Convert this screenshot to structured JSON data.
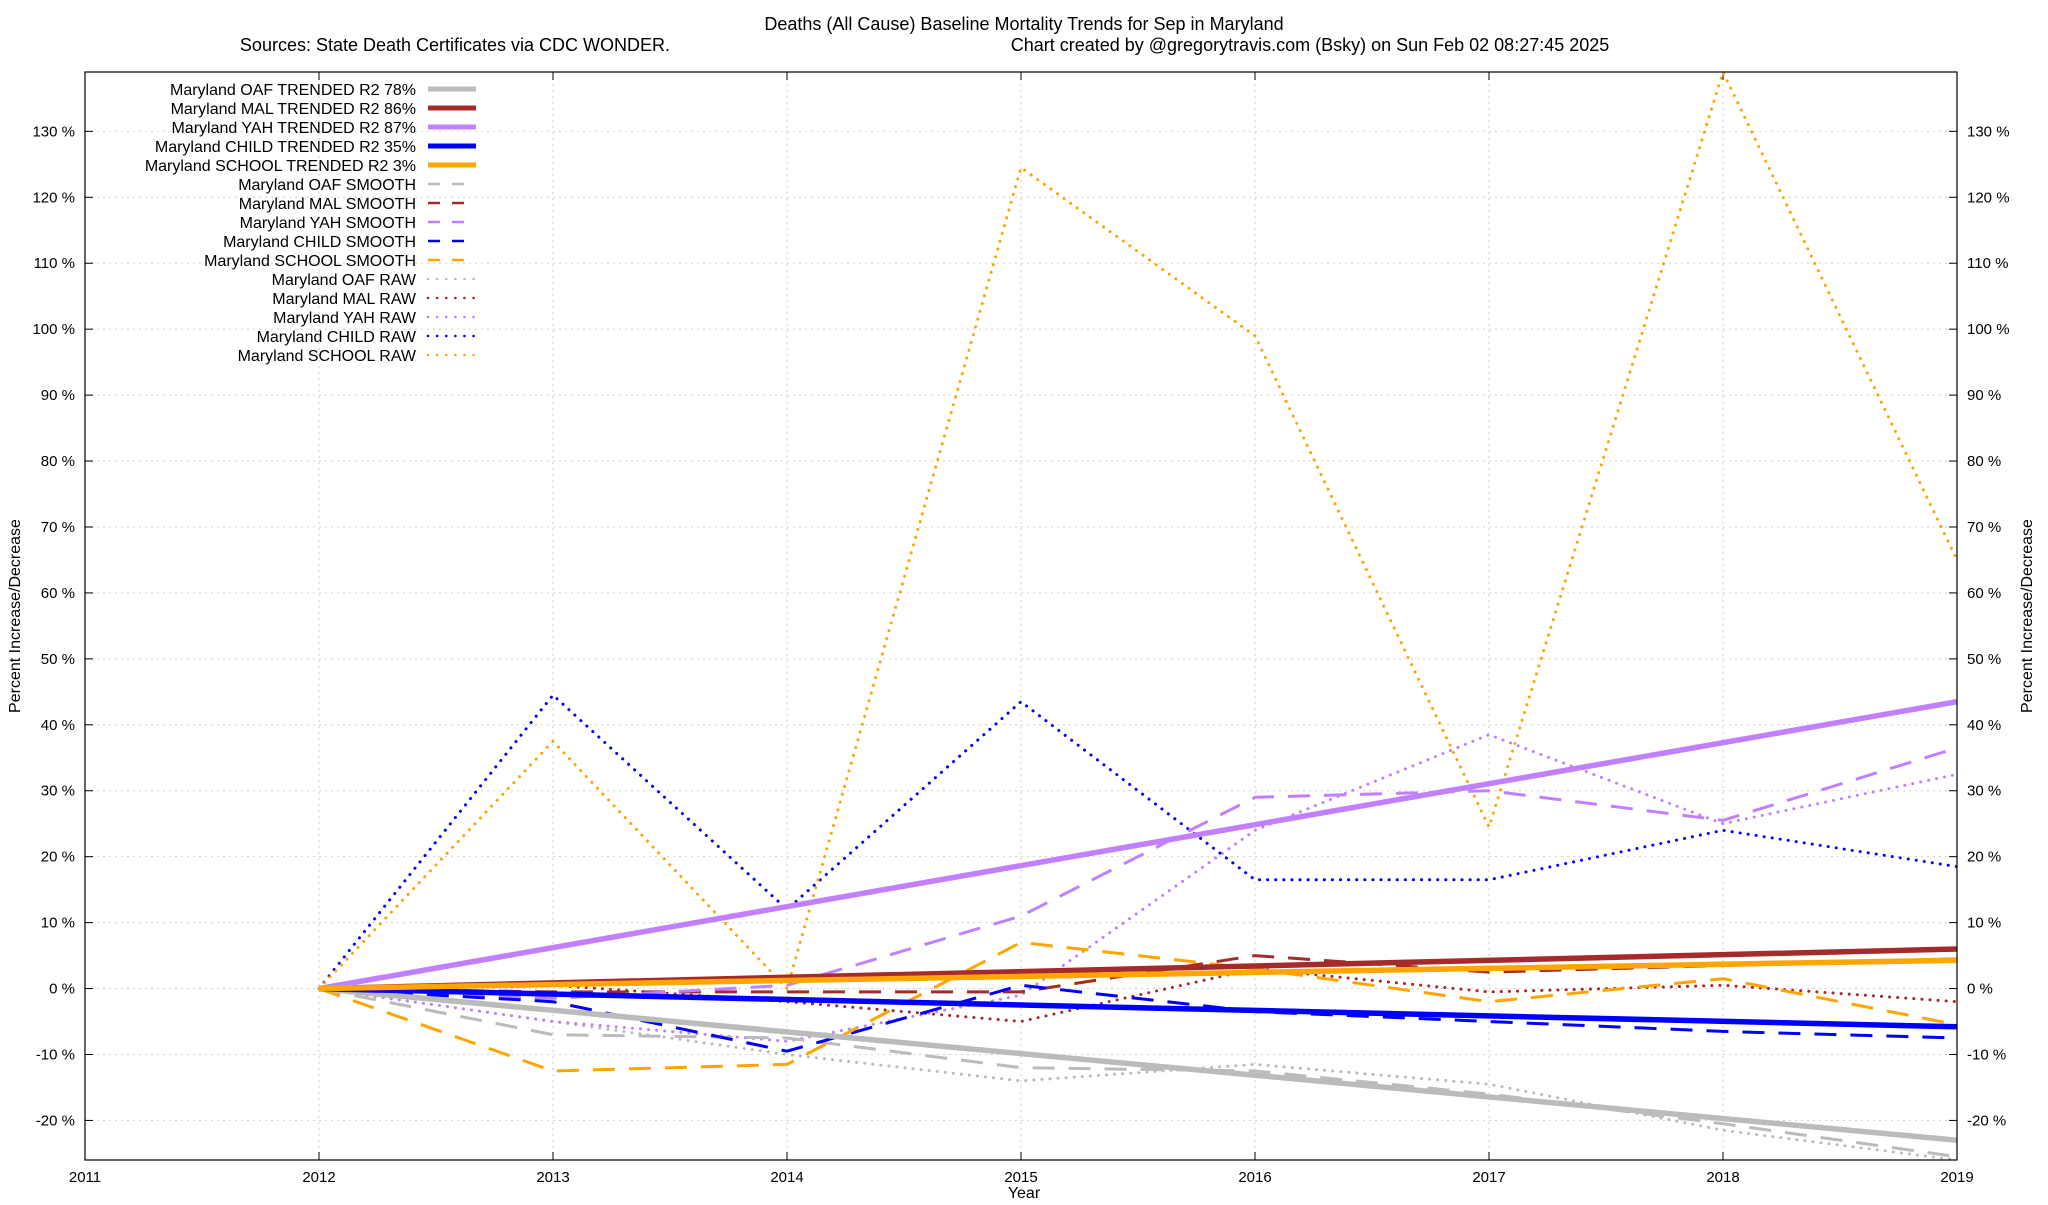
{
  "chart_data": {
    "type": "line",
    "title": "Deaths (All Cause)  Baseline Mortality Trends for Sep in Maryland",
    "subtitle_left": "Sources: State Death Certificates via CDC WONDER.",
    "subtitle_right": "Chart created by @gregorytravis.com (Bsky) on Sun Feb 02 08:27:45 2025",
    "xlabel": "Year",
    "ylabel": "Percent Increase/Decrease",
    "ylabel_right": "Percent Increase/Decrease",
    "xlim": [
      2011,
      2019
    ],
    "ylim": [
      -26,
      139
    ],
    "xticks": [
      2011,
      2012,
      2013,
      2014,
      2015,
      2016,
      2017,
      2018,
      2019
    ],
    "xtick_labels": [
      "2011",
      "2012",
      "2013",
      "2014",
      "2015",
      "2016",
      "2017",
      "2018",
      "2019"
    ],
    "yticks": [
      -20,
      -10,
      0,
      10,
      20,
      30,
      40,
      50,
      60,
      70,
      80,
      90,
      100,
      110,
      120,
      130
    ],
    "ytick_labels": [
      "-20 %",
      "-10 %",
      "0 %",
      "10 %",
      "20 %",
      "30 %",
      "40 %",
      "50 %",
      "60 %",
      "70 %",
      "80 %",
      "90 %",
      "100 %",
      "110 %",
      "120 %",
      "130 %"
    ],
    "grid": true,
    "legend_position": "top-left",
    "series": [
      {
        "name": "Maryland OAF TRENDED R2  78%",
        "style": "solid",
        "color": "#bbbbbb",
        "x": [
          2012,
          2019
        ],
        "values": [
          0,
          -23
        ]
      },
      {
        "name": "Maryland MAL TRENDED R2  86%",
        "style": "solid",
        "color": "#a52a2a",
        "x": [
          2012,
          2019
        ],
        "values": [
          0,
          6
        ]
      },
      {
        "name": "Maryland YAH TRENDED R2  87%",
        "style": "solid",
        "color": "#c080ff",
        "x": [
          2012,
          2019
        ],
        "values": [
          0,
          43.5
        ]
      },
      {
        "name": "Maryland CHILD TRENDED R2  35%",
        "style": "solid",
        "color": "#0000ff",
        "x": [
          2012,
          2019
        ],
        "values": [
          0,
          -5.8
        ]
      },
      {
        "name": "Maryland SCHOOL TRENDED R2   3%",
        "style": "solid",
        "color": "#ffa500",
        "x": [
          2012,
          2019
        ],
        "values": [
          0,
          4.3
        ]
      },
      {
        "name": "Maryland OAF SMOOTH",
        "style": "dashed",
        "color": "#bbbbbb",
        "x": [
          2012,
          2013,
          2014,
          2015,
          2016,
          2017,
          2018,
          2019
        ],
        "values": [
          0,
          -7,
          -7.5,
          -12,
          -12.5,
          -16,
          -20.5,
          -25.5
        ]
      },
      {
        "name": "Maryland MAL SMOOTH",
        "style": "dashed",
        "color": "#a52a2a",
        "x": [
          2012,
          2013,
          2014,
          2015,
          2016,
          2017,
          2018,
          2019
        ],
        "values": [
          0,
          -0.5,
          -0.5,
          -0.5,
          5,
          2.5,
          3.5,
          4.5
        ]
      },
      {
        "name": "Maryland YAH SMOOTH",
        "style": "dashed",
        "color": "#c080ff",
        "x": [
          2012,
          2013,
          2014,
          2015,
          2016,
          2017,
          2018,
          2019
        ],
        "values": [
          0,
          -1.5,
          0.5,
          11,
          29,
          30,
          25.5,
          36.5
        ]
      },
      {
        "name": "Maryland CHILD SMOOTH",
        "style": "dashed",
        "color": "#0000ff",
        "x": [
          2012,
          2013,
          2014,
          2015,
          2016,
          2017,
          2018,
          2019
        ],
        "values": [
          0,
          -2,
          -9.5,
          0.5,
          -3.5,
          -5,
          -6.5,
          -7.5
        ]
      },
      {
        "name": "Maryland SCHOOL SMOOTH",
        "style": "dashed",
        "color": "#ffa500",
        "x": [
          2012,
          2013,
          2014,
          2015,
          2016,
          2017,
          2018,
          2019
        ],
        "values": [
          0,
          -12.5,
          -11.5,
          7,
          3,
          -2,
          1.5,
          -5.5
        ]
      },
      {
        "name": "Maryland OAF RAW",
        "style": "dotted",
        "color": "#bbbbbb",
        "x": [
          2012,
          2013,
          2014,
          2015,
          2016,
          2017,
          2018,
          2019
        ],
        "values": [
          0,
          -5,
          -10,
          -14,
          -11.5,
          -14.5,
          -21.5,
          -26
        ]
      },
      {
        "name": "Maryland MAL RAW",
        "style": "dotted",
        "color": "#a52a2a",
        "x": [
          2012,
          2013,
          2014,
          2015,
          2016,
          2017,
          2018,
          2019
        ],
        "values": [
          0,
          0.5,
          -2,
          -5,
          3,
          -0.5,
          0.5,
          -2
        ]
      },
      {
        "name": "Maryland YAH RAW",
        "style": "dotted",
        "color": "#c080ff",
        "x": [
          2012,
          2013,
          2014,
          2015,
          2016,
          2017,
          2018,
          2019
        ],
        "values": [
          0,
          -5,
          -8,
          -1,
          24,
          38.5,
          25,
          32.5
        ]
      },
      {
        "name": "Maryland CHILD RAW",
        "style": "dotted",
        "color": "#0000ff",
        "x": [
          2012,
          2013,
          2014,
          2015,
          2016,
          2017,
          2018,
          2019
        ],
        "values": [
          0,
          44.5,
          12,
          43.5,
          16.5,
          16.5,
          24,
          18.5
        ]
      },
      {
        "name": "Maryland SCHOOL RAW",
        "style": "dotted",
        "color": "#ffa500",
        "x": [
          2012,
          2013,
          2014,
          2015,
          2016,
          2017,
          2018,
          2019
        ],
        "values": [
          0,
          37.5,
          0,
          124.5,
          99,
          24.5,
          139,
          65
        ]
      }
    ]
  }
}
